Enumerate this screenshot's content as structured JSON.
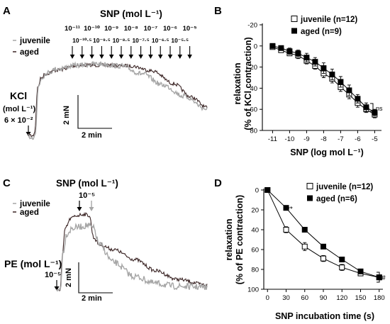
{
  "panels": {
    "A": {
      "letter": "A",
      "title": "SNP (mol L⁻¹)",
      "legend": [
        "juvenile",
        "aged"
      ],
      "kcl_label_1": "KCl",
      "kcl_label_2": "(mol L⁻¹)",
      "kcl_label_3": "6 × 10⁻²",
      "conc_row1": [
        "10⁻¹¹",
        "10⁻¹⁰",
        "10⁻⁹",
        "10⁻⁸",
        "10⁻⁷",
        "10⁻⁶",
        "10⁻⁵"
      ],
      "conc_row2": [
        "10⁻¹⁰·⁵",
        "10⁻⁹·⁵",
        "10⁻⁸·⁵",
        "10⁻⁷·⁵",
        "10⁻⁶·⁵",
        "10⁻⁵·⁵"
      ],
      "scale_y": "2 mN",
      "scale_x": "2 min"
    },
    "C": {
      "letter": "C",
      "title": "SNP (mol L⁻¹)",
      "title_conc": "10⁻⁵",
      "legend": [
        "juvenile",
        "aged"
      ],
      "pe_label": "PE (mol L⁻¹)",
      "pe_conc": "10⁻⁵",
      "scale_y": "2 mN",
      "scale_x": "2 min"
    }
  },
  "colors": {
    "juvenile": "#a6a6a6",
    "aged": "#3a2424",
    "axis": "#000000"
  },
  "chart_data": [
    {
      "panel": "B",
      "type": "line",
      "xlabel": "SNP (log mol L⁻¹)",
      "ylabel_1": "relaxation",
      "ylabel_2": "(% of KCl contraction)",
      "x_ticks": [
        "-11",
        "-10",
        "-9",
        "-8",
        "-7",
        "-6",
        "-5"
      ],
      "y_ticks": [
        "-20",
        "0",
        "20",
        "40",
        "60",
        "80"
      ],
      "xlim": [
        -11.6,
        -4.6
      ],
      "ylim": [
        -20,
        80
      ],
      "y_inverted": true,
      "x": [
        -11,
        -10.5,
        -10,
        -9.5,
        -9,
        -8.5,
        -8,
        -7.5,
        -7,
        -6.5,
        -6,
        -5.5,
        -5
      ],
      "series": [
        {
          "name": "juvenile (n=12)",
          "marker": "open-square",
          "values": [
            1,
            4,
            7,
            9,
            14,
            19,
            26,
            31,
            39,
            46,
            54,
            60,
            65
          ],
          "errors": [
            2,
            2,
            2,
            3,
            3,
            3,
            4,
            4,
            4,
            4,
            4,
            3,
            3
          ]
        },
        {
          "name": "aged (n=9)",
          "marker": "filled-square",
          "values": [
            0,
            2,
            5,
            7,
            11,
            15,
            21,
            27,
            34,
            42,
            50,
            58,
            63
          ],
          "errors": [
            2,
            2,
            3,
            3,
            4,
            4,
            5,
            5,
            5,
            5,
            4,
            4,
            3
          ]
        }
      ],
      "annotation": "ns"
    },
    {
      "panel": "D",
      "type": "line",
      "xlabel": "SNP incubation time (s)",
      "ylabel_1": "relaxation",
      "ylabel_2": "(% of PE contraction)",
      "x_ticks": [
        "0",
        "30",
        "60",
        "90",
        "120",
        "150",
        "180"
      ],
      "y_ticks": [
        "0",
        "20",
        "40",
        "60",
        "80",
        "100"
      ],
      "xlim": [
        -6,
        186
      ],
      "ylim": [
        0,
        100
      ],
      "y_inverted": true,
      "x": [
        0,
        30,
        60,
        90,
        120,
        150,
        180
      ],
      "series": [
        {
          "name": "juvenile (n=12)",
          "marker": "open-square",
          "values": [
            0,
            40,
            57,
            69,
            78,
            84,
            88
          ],
          "errors": [
            0,
            3,
            4,
            3,
            3,
            2,
            2
          ]
        },
        {
          "name": "aged (n=6)",
          "marker": "filled-square",
          "values": [
            0,
            18,
            40,
            57,
            70,
            82,
            88
          ],
          "errors": [
            0,
            2,
            2,
            2,
            2,
            2,
            2
          ]
        }
      ],
      "annotations": [
        "**",
        "#"
      ]
    }
  ]
}
